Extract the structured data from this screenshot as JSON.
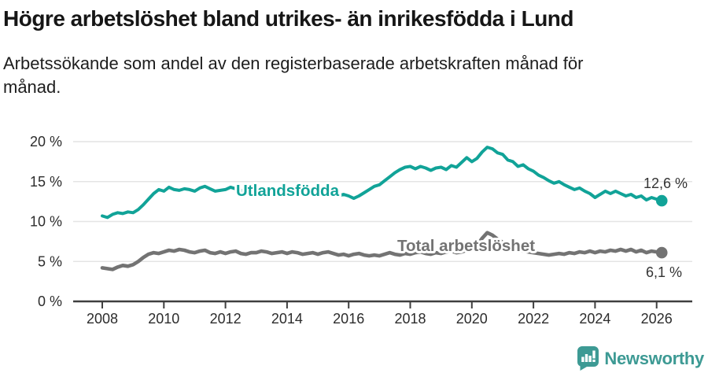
{
  "header": {
    "title": "Högre arbetslöshet bland utrikes- än inrikesfödda i Lund",
    "subtitle_line1": "Arbetssökande som andel av den registerbaserade arbetskraften månad för",
    "subtitle_line2": "månad."
  },
  "footer": {
    "brand": "Newsworthy",
    "logo_icon": "newsworthy-bubble-chart-icon"
  },
  "colors": {
    "teal": "#11a398",
    "gray": "#737373",
    "grid": "#e4e4e4",
    "axis": "#3f3f3f",
    "tick_text": "#2c2c2c",
    "annotation_text": "#333333",
    "brand_teal": "#3d9a94"
  },
  "chart_data": {
    "type": "line",
    "title": "Högre arbetslöshet bland utrikes- än inrikesfödda i Lund",
    "subtitle": "Arbetssökande som andel av den registerbaserade arbetskraften månad för månad.",
    "unit": "%",
    "grid": true,
    "legend_position": "inline-labels",
    "x_axis": {
      "ticks": [
        2008,
        2010,
        2012,
        2014,
        2016,
        2018,
        2020,
        2022,
        2024,
        2026
      ],
      "range": [
        2007.1,
        2027.2
      ]
    },
    "y_axis": {
      "tick_values": [
        0,
        5,
        10,
        15,
        20
      ],
      "tick_labels": [
        "0 %",
        "5 %",
        "10 %",
        "15 %",
        "20 %"
      ],
      "ylim": [
        0,
        21
      ]
    },
    "x_start": 2008.0,
    "x_step_years": 0.166667,
    "series": [
      {
        "name": "Utlandsfödda",
        "color": "#11a398",
        "end_value": 12.6,
        "end_label": "12,6 %",
        "values": [
          10.7,
          10.5,
          10.9,
          11.1,
          11.0,
          11.2,
          11.1,
          11.5,
          12.1,
          12.8,
          13.5,
          14.0,
          13.8,
          14.3,
          14.0,
          13.9,
          14.1,
          14.0,
          13.8,
          14.2,
          14.4,
          14.1,
          13.8,
          13.9,
          14.0,
          14.3,
          14.1,
          13.9,
          13.8,
          14.0,
          13.9,
          14.1,
          13.8,
          13.6,
          13.5,
          13.7,
          13.5,
          13.9,
          13.7,
          13.4,
          13.5,
          13.7,
          13.4,
          13.7,
          13.8,
          13.5,
          13.2,
          13.4,
          13.2,
          12.9,
          13.2,
          13.6,
          14.0,
          14.4,
          14.6,
          15.1,
          15.6,
          16.1,
          16.5,
          16.8,
          16.9,
          16.6,
          16.9,
          16.7,
          16.4,
          16.7,
          16.8,
          16.5,
          17.0,
          16.8,
          17.4,
          18.0,
          17.5,
          17.9,
          18.7,
          19.3,
          19.1,
          18.6,
          18.4,
          17.7,
          17.5,
          16.9,
          17.1,
          16.6,
          16.3,
          15.8,
          15.5,
          15.1,
          14.8,
          15.0,
          14.6,
          14.3,
          14.0,
          14.2,
          13.8,
          13.5,
          13.0,
          13.4,
          13.8,
          13.5,
          13.8,
          13.5,
          13.2,
          13.4,
          13.0,
          13.2,
          12.7,
          13.0,
          12.8,
          12.6
        ]
      },
      {
        "name": "Total arbetslöshet",
        "color": "#737373",
        "end_value": 6.1,
        "end_label": "6,1 %",
        "values": [
          4.2,
          4.1,
          4.0,
          4.3,
          4.5,
          4.4,
          4.6,
          5.0,
          5.5,
          5.9,
          6.1,
          6.0,
          6.2,
          6.4,
          6.3,
          6.5,
          6.4,
          6.2,
          6.1,
          6.3,
          6.4,
          6.1,
          6.0,
          6.2,
          6.0,
          6.2,
          6.3,
          6.0,
          5.9,
          6.1,
          6.1,
          6.3,
          6.2,
          6.0,
          6.1,
          6.2,
          6.0,
          6.2,
          6.1,
          5.9,
          6.0,
          6.1,
          5.9,
          6.1,
          6.2,
          6.0,
          5.8,
          5.9,
          5.7,
          5.9,
          6.0,
          5.8,
          5.7,
          5.8,
          5.7,
          5.9,
          6.1,
          5.9,
          5.8,
          6.0,
          5.9,
          6.1,
          6.2,
          6.0,
          5.9,
          6.1,
          6.0,
          6.2,
          6.3,
          6.1,
          6.2,
          6.4,
          6.5,
          7.0,
          7.9,
          8.6,
          8.3,
          7.8,
          7.4,
          7.0,
          6.7,
          6.5,
          6.3,
          6.2,
          6.1,
          6.0,
          5.9,
          5.8,
          5.9,
          6.0,
          5.9,
          6.1,
          6.0,
          6.2,
          6.1,
          6.3,
          6.1,
          6.3,
          6.2,
          6.4,
          6.3,
          6.5,
          6.3,
          6.5,
          6.2,
          6.4,
          6.1,
          6.3,
          6.2,
          6.1
        ]
      }
    ]
  }
}
